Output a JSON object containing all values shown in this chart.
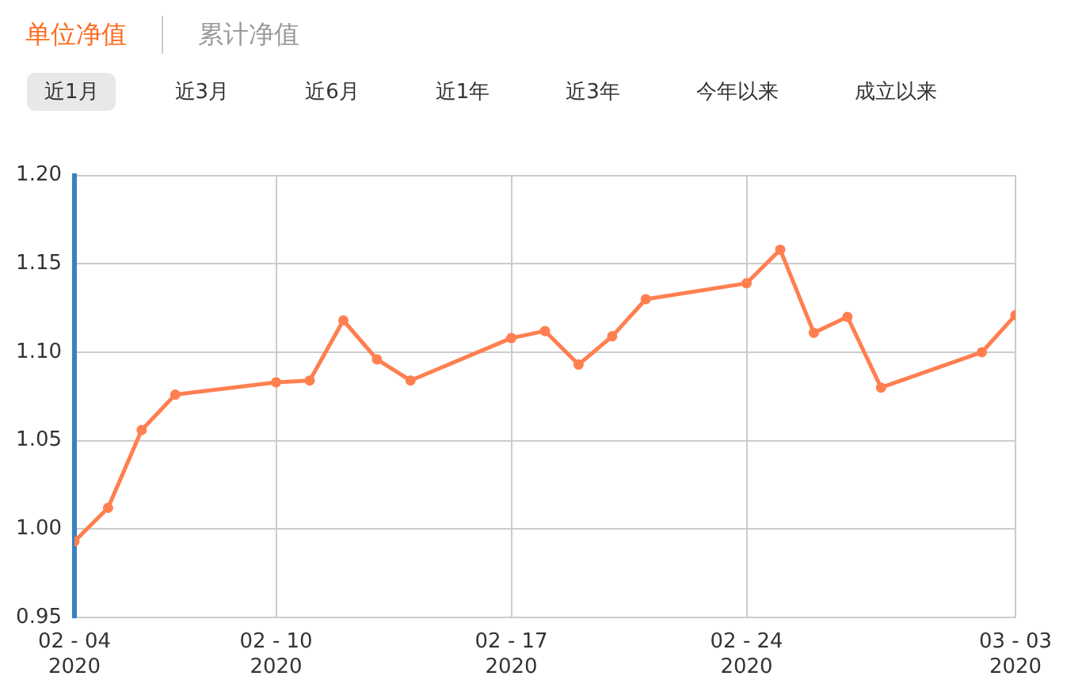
{
  "chart_data": {
    "type": "line",
    "title": "单位净值",
    "subtitle": "累计净值",
    "annotations": [
      "近1月",
      "近3月",
      "近6月",
      "近1年",
      "近3年",
      "今年以来",
      "成立以来"
    ],
    "x": [
      "2020-02-04",
      "2020-02-05",
      "2020-02-06",
      "2020-02-07",
      "2020-02-10",
      "2020-02-11",
      "2020-02-12",
      "2020-02-13",
      "2020-02-14",
      "2020-02-17",
      "2020-02-18",
      "2020-02-19",
      "2020-02-20",
      "2020-02-21",
      "2020-02-24",
      "2020-02-25",
      "2020-02-26",
      "2020-02-27",
      "2020-02-28",
      "2020-03-02",
      "2020-03-03"
    ],
    "series": [
      {
        "color": "#ff7f50",
        "values": [
          0.993,
          1.012,
          1.056,
          1.076,
          1.083,
          1.084,
          1.118,
          1.096,
          1.084,
          1.108,
          1.112,
          1.093,
          1.109,
          1.13,
          1.139,
          1.158,
          1.111,
          1.12,
          1.08,
          1.1,
          1.121
        ]
      }
    ],
    "xlim": [
      "2020-02-04",
      "2020-03-03"
    ],
    "xticks": [
      {
        "value": "2020-02-04",
        "label": "02 - 04\n2020"
      },
      {
        "value": "2020-02-10",
        "label": "02 - 10\n2020"
      },
      {
        "value": "2020-02-17",
        "label": "02 - 17\n2020"
      },
      {
        "value": "2020-02-24",
        "label": "02 - 24\n2020"
      },
      {
        "value": "2020-03-03",
        "label": "03 - 03\n2020"
      }
    ],
    "ylim": [
      0.95,
      1.2
    ],
    "yticks": [
      {
        "value": 0.95,
        "label": "0.95"
      },
      {
        "value": 1,
        "label": "1.00"
      },
      {
        "value": 1.05,
        "label": "1.05"
      },
      {
        "value": 1.1,
        "label": "1.10"
      },
      {
        "value": 1.15,
        "label": "1.15"
      },
      {
        "value": 1.2,
        "label": "1.20"
      }
    ],
    "grid": true,
    "legend": false,
    "marker": "circle",
    "line_style": "solid"
  }
}
